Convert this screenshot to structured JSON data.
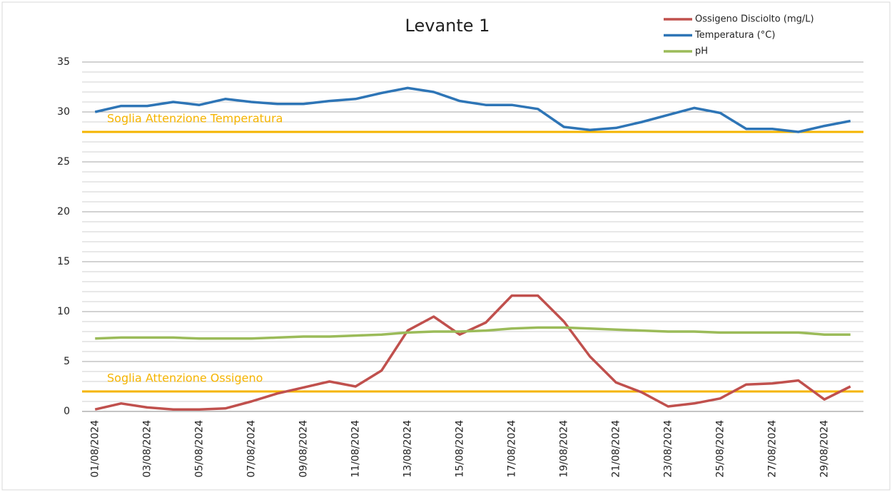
{
  "chart_data": {
    "type": "line",
    "title": "Levante 1",
    "categories": [
      "01/08/2024",
      null,
      "03/08/2024",
      null,
      "05/08/2024",
      null,
      "07/08/2024",
      null,
      "09/08/2024",
      null,
      "11/08/2024",
      null,
      "13/08/2024",
      null,
      "15/08/2024",
      null,
      "17/08/2024",
      null,
      "19/08/2024",
      null,
      "21/08/2024",
      null,
      "23/08/2024",
      null,
      "25/08/2024",
      null,
      "27/08/2024",
      null,
      "29/08/2024",
      null
    ],
    "series": [
      {
        "name": "Ossigeno Disciolto (mg/L)",
        "color": "#c0504d",
        "values": [
          0.2,
          0.8,
          0.4,
          0.2,
          0.2,
          0.3,
          1.0,
          1.8,
          2.4,
          3.0,
          2.5,
          4.1,
          8.1,
          9.5,
          7.7,
          8.9,
          11.6,
          11.6,
          9.0,
          5.5,
          2.9,
          1.9,
          0.5,
          0.8,
          1.3,
          2.7,
          2.8,
          3.1,
          1.2,
          2.5
        ]
      },
      {
        "name": "Temperatura (°C)",
        "color": "#2e75b6",
        "values": [
          30.0,
          30.6,
          30.6,
          31.0,
          30.7,
          31.3,
          31.0,
          30.8,
          30.8,
          31.1,
          31.3,
          31.9,
          32.4,
          32.0,
          31.1,
          30.7,
          30.7,
          30.3,
          28.5,
          28.2,
          28.4,
          29.0,
          29.7,
          30.4,
          29.9,
          28.3,
          28.3,
          28.0,
          28.6,
          29.1
        ]
      },
      {
        "name": "pH",
        "color": "#9bbb59",
        "values": [
          7.3,
          7.4,
          7.4,
          7.4,
          7.3,
          7.3,
          7.3,
          7.4,
          7.5,
          7.5,
          7.6,
          7.7,
          7.9,
          8.0,
          8.0,
          8.1,
          8.3,
          8.4,
          8.4,
          8.3,
          8.2,
          8.1,
          8.0,
          8.0,
          7.9,
          7.9,
          7.9,
          7.9,
          7.7,
          7.7
        ]
      }
    ],
    "thresholds": [
      {
        "label": "Soglia Attenzione Temperatura",
        "value": 28,
        "color": "#f5b400"
      },
      {
        "label": "Soglia Attenzione Ossigeno",
        "value": 2,
        "color": "#f5b400"
      }
    ],
    "ylim": [
      0,
      35
    ],
    "yticks": [
      0,
      5,
      10,
      15,
      20,
      25,
      30,
      35
    ],
    "grid": true,
    "legend": "top-right"
  }
}
